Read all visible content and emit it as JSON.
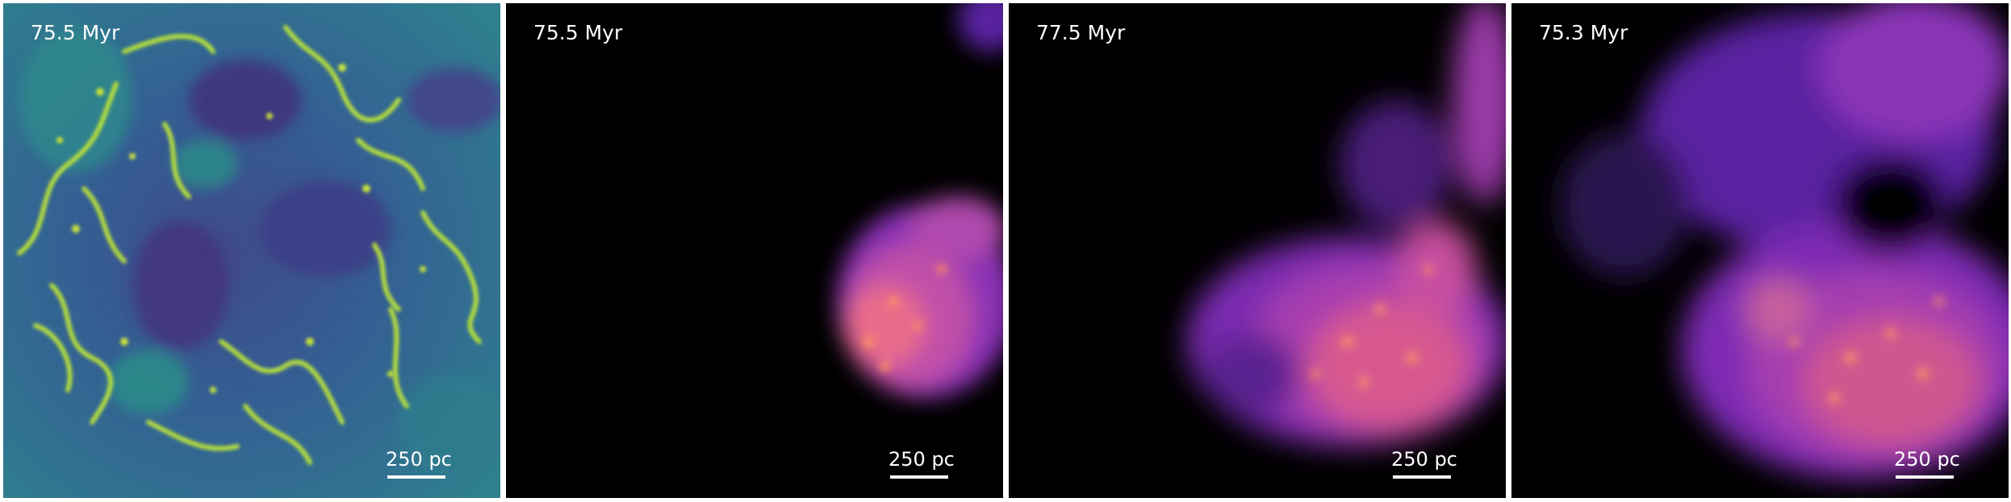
{
  "panels": [
    {
      "time": "75.5 Myr",
      "scale": "250 pc",
      "colormap": "viridis"
    },
    {
      "time": "75.5 Myr",
      "scale": "250 pc",
      "colormap": "magma"
    },
    {
      "time": "77.5 Myr",
      "scale": "250 pc",
      "colormap": "magma"
    },
    {
      "time": "75.3 Myr",
      "scale": "250 pc",
      "colormap": "magma"
    }
  ],
  "colors": {
    "background": "#000000",
    "viridis_low": "#3b2f7a",
    "viridis_mid": "#2a8a8a",
    "viridis_high": "#c9e33a",
    "magma_low": "#3a1a6a",
    "magma_mid": "#a040b0",
    "magma_high": "#f87a66"
  }
}
